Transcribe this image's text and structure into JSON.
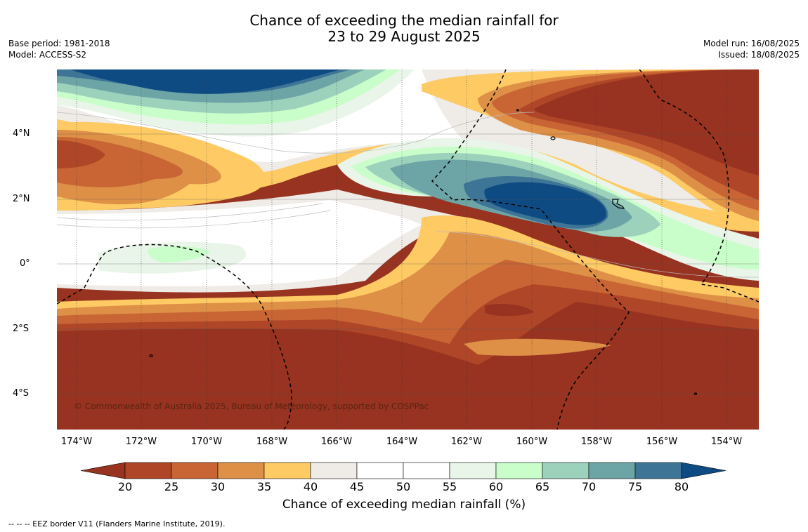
{
  "title": {
    "line1": "Chance of exceeding the median rainfall for",
    "line2": "23 to 29 August 2025"
  },
  "meta": {
    "base_period": "Base period: 1981-2018",
    "model": "Model: ACCESS-S2",
    "model_run": "Model run: 16/08/2025",
    "issued": "Issued: 18/08/2025"
  },
  "map": {
    "lat_labels": [
      "4°N",
      "2°N",
      "0°",
      "2°S",
      "4°S"
    ],
    "lon_labels": [
      "174°W",
      "172°W",
      "170°W",
      "168°W",
      "166°W",
      "164°W",
      "162°W",
      "160°W",
      "158°W",
      "156°W",
      "154°W"
    ],
    "copyright": "© Commonwealth of Australia 2025, Bureau of Meteorology, supported by COSPPac"
  },
  "legend": {
    "ticks": [
      "20",
      "25",
      "30",
      "35",
      "40",
      "45",
      "50",
      "55",
      "60",
      "65",
      "70",
      "75",
      "80"
    ],
    "label": "Chance of exceeding median rainfall (%)",
    "colors": [
      "#973320",
      "#b04628",
      "#c96534",
      "#de9047",
      "#fdca64",
      "#efebe6",
      "#ffffff",
      "#ffffff",
      "#eaf5e9",
      "#c9fdca",
      "#9cd1bc",
      "#6da5a7",
      "#3e7596",
      "#0f4b83"
    ]
  },
  "footnote": "--  --  -- EEZ border V11 (Flanders Marine Institute, 2019)."
}
